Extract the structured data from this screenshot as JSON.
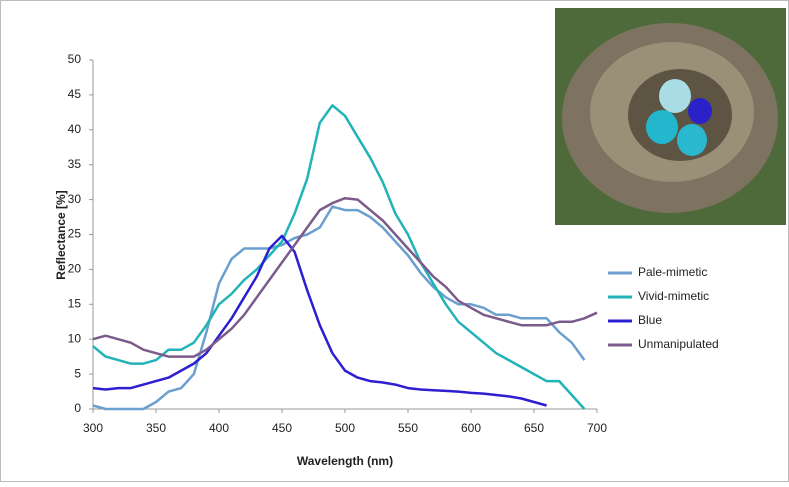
{
  "chart_data": {
    "type": "line",
    "x_label": "Wavelength (nm)",
    "y_label": "Reflectance [%]",
    "x": [
      300,
      310,
      320,
      330,
      340,
      350,
      360,
      370,
      380,
      390,
      400,
      410,
      420,
      430,
      440,
      450,
      460,
      470,
      480,
      490,
      500,
      510,
      520,
      530,
      540,
      550,
      560,
      570,
      580,
      590,
      600,
      610,
      620,
      630,
      640,
      650,
      660,
      670,
      680,
      690,
      700
    ],
    "series": [
      {
        "name": "Pale-mimetic",
        "color": "#6b9fcf",
        "values": [
          0.5,
          0,
          0,
          0,
          0,
          1,
          2.5,
          3,
          5,
          11,
          18,
          21.5,
          23,
          23,
          23,
          23.5,
          24.5,
          25,
          26,
          29,
          28.5,
          28.5,
          27.5,
          26,
          24,
          22,
          19.5,
          17.5,
          16,
          15,
          15,
          14.5,
          13.5,
          13.5,
          13,
          13,
          13,
          11,
          9.5,
          7,
          null
        ]
      },
      {
        "name": "Vivid-mimetic",
        "color": "#22b3b8",
        "values": [
          9,
          7.5,
          7,
          6.5,
          6.5,
          7,
          8.5,
          8.5,
          9.5,
          12,
          15,
          16.5,
          18.5,
          20,
          22,
          24,
          28,
          33,
          41,
          43.5,
          42,
          39,
          36,
          32.5,
          28,
          25,
          21,
          18,
          15,
          12.5,
          11,
          9.5,
          8,
          7,
          6,
          5,
          4,
          4,
          2,
          0,
          null
        ]
      },
      {
        "name": "Blue",
        "color": "#2d1fd1",
        "values": [
          3,
          2.8,
          3,
          3,
          3.5,
          4,
          4.5,
          5.5,
          6.5,
          8,
          10.5,
          13,
          16,
          19,
          23,
          24.8,
          22.5,
          17,
          12,
          8,
          5.5,
          4.5,
          4,
          3.8,
          3.5,
          3,
          2.8,
          2.7,
          2.6,
          2.5,
          2.3,
          2.2,
          2,
          1.8,
          1.5,
          1,
          0.5,
          null,
          null,
          null,
          null
        ]
      },
      {
        "name": "Unmanipulated",
        "color": "#7b5b8c",
        "values": [
          10,
          10.5,
          10,
          9.5,
          8.5,
          8,
          7.5,
          7.5,
          7.5,
          8.5,
          10,
          11.5,
          13.5,
          16,
          18.5,
          21,
          23.5,
          26,
          28.5,
          29.5,
          30.2,
          30,
          28.5,
          27,
          25,
          23,
          21,
          19,
          17.5,
          15.5,
          14.5,
          13.5,
          13,
          12.5,
          12,
          12,
          12,
          12.5,
          12.5,
          13,
          13.8
        ]
      }
    ],
    "xlim": [
      300,
      700
    ],
    "ylim": [
      0,
      50
    ],
    "xticks": [
      300,
      350,
      400,
      450,
      500,
      550,
      600,
      650,
      700
    ],
    "yticks": [
      0,
      5,
      10,
      15,
      20,
      25,
      30,
      35,
      40,
      45,
      50
    ],
    "grid": false,
    "legend": "right"
  }
}
